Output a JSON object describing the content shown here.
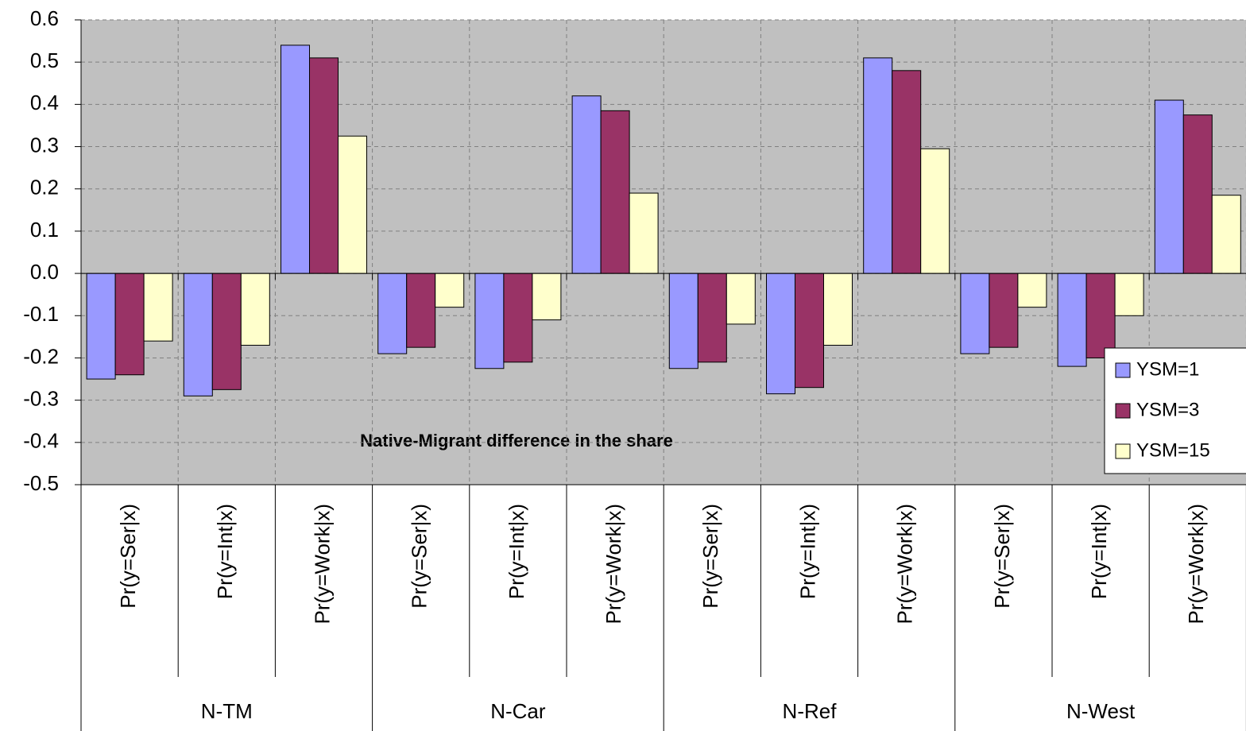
{
  "chart_data": {
    "type": "bar",
    "annotation": "Native-Migrant difference in the share",
    "groups": [
      "N-TM",
      "N-Car",
      "N-Ref",
      "N-West"
    ],
    "categories": [
      "Pr(y=Ser|x)",
      "Pr(y=Int|x)",
      "Pr(y=Work|x)",
      "Pr(y=Ser|x)",
      "Pr(y=Int|x)",
      "Pr(y=Work|x)",
      "Pr(y=Ser|x)",
      "Pr(y=Int|x)",
      "Pr(y=Work|x)",
      "Pr(y=Ser|x)",
      "Pr(y=Int|x)",
      "Pr(y=Work|x)"
    ],
    "series": [
      {
        "name": "YSM=1",
        "color": "#9999ff",
        "values": [
          -0.25,
          -0.29,
          0.54,
          -0.19,
          -0.225,
          0.42,
          -0.225,
          -0.285,
          0.51,
          -0.19,
          -0.22,
          0.41
        ]
      },
      {
        "name": "YSM=3",
        "color": "#993366",
        "values": [
          -0.24,
          -0.275,
          0.51,
          -0.175,
          -0.21,
          0.385,
          -0.21,
          -0.27,
          0.48,
          -0.175,
          -0.2,
          0.375
        ]
      },
      {
        "name": "YSM=15",
        "color": "#ffffcc",
        "values": [
          -0.16,
          -0.17,
          0.325,
          -0.08,
          -0.11,
          0.19,
          -0.12,
          -0.17,
          0.295,
          -0.08,
          -0.1,
          0.185
        ]
      }
    ],
    "ylim": [
      -0.5,
      0.6
    ],
    "yticks": [
      -0.5,
      -0.4,
      -0.3,
      -0.2,
      -0.1,
      {
        "value": 0,
        "label": "0.0"
      },
      0.1,
      0.2,
      0.3,
      0.4,
      0.5,
      0.6
    ],
    "grid": true,
    "legend": "right"
  }
}
